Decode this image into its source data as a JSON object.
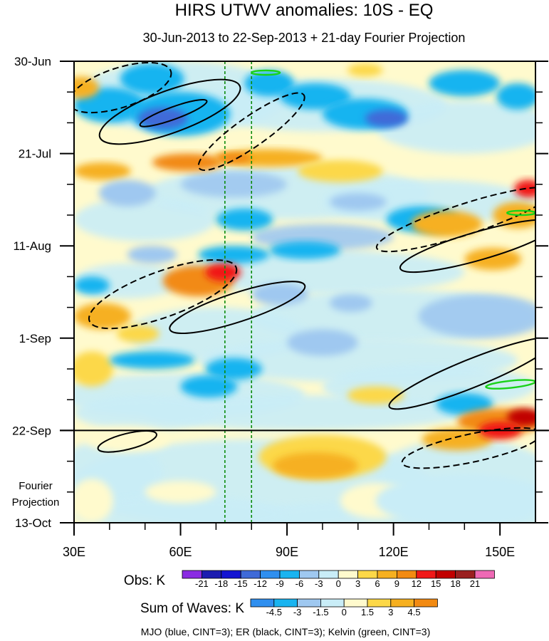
{
  "chart_data": {
    "type": "heatmap",
    "title": "HIRS UTWV anomalies: 10S - EQ",
    "subtitle": "30-Jun-2013 to 22-Sep-2013 + 21-day Fourier Projection",
    "x_axis": {
      "range": [
        30,
        160
      ],
      "ticks": [
        {
          "value": 30,
          "label": "30E"
        },
        {
          "value": 60,
          "label": "60E"
        },
        {
          "value": 90,
          "label": "90E"
        },
        {
          "value": 120,
          "label": "120E"
        },
        {
          "value": 150,
          "label": "150E"
        }
      ],
      "minor_ticks": [
        40,
        50,
        70,
        80,
        100,
        110,
        130,
        140
      ]
    },
    "y_axis": {
      "range_days": [
        0,
        105
      ],
      "ticks": [
        {
          "day": 0,
          "label": "30-Jun"
        },
        {
          "day": 21,
          "label": "21-Jul"
        },
        {
          "day": 42,
          "label": "11-Aug"
        },
        {
          "day": 63,
          "label": "1-Sep"
        },
        {
          "day": 84,
          "label": "22-Sep"
        },
        {
          "day": 105,
          "label": "13-Oct"
        }
      ],
      "minor_tick_days": [
        7,
        14,
        28,
        35,
        49,
        56,
        70,
        77,
        91,
        98
      ]
    },
    "observation_end_day": 84,
    "projection_label": [
      "Fourier",
      "Projection"
    ],
    "reference_lines_lon": [
      72.5,
      80
    ],
    "obs_legend": {
      "label": "Obs: K",
      "levels": [
        "-21",
        "-18",
        "-15",
        "-12",
        "-9",
        "-6",
        "-3",
        "0",
        "3",
        "6",
        "9",
        "12",
        "15",
        "18",
        "21"
      ],
      "colors": [
        "#8a2be2",
        "#1c1cb0",
        "#1414d2",
        "#3f6ad8",
        "#2f8fef",
        "#19b4f0",
        "#9fc8f0",
        "#c9edf7",
        "#fffacd",
        "#fcd848",
        "#f6b020",
        "#f28a12",
        "#f01818",
        "#c10000",
        "#9a2020",
        "#ee69b5"
      ]
    },
    "waves_legend": {
      "label": "Sum of Waves: K",
      "levels": [
        "-4.5",
        "-3",
        "-1.5",
        "0",
        "1.5",
        "3",
        "4.5"
      ],
      "colors": [
        "#2f8fef",
        "#19b4f0",
        "#9fc8f0",
        "#c9edf7",
        "#fffacd",
        "#fcd848",
        "#f6b020",
        "#f28a12"
      ]
    },
    "footnote": "MJO (blue, CINT=3); ER (black, CINT=3); Kelvin (green, CINT=3)",
    "anomaly_blobs": [
      {
        "lon": 52,
        "day": 4,
        "rlon": 9,
        "rday": 3.5,
        "level": 5
      },
      {
        "lon": 40,
        "day": 10,
        "rlon": 10,
        "rday": 4,
        "level": 5
      },
      {
        "lon": 60,
        "day": 12,
        "rlon": 14,
        "rday": 5,
        "level": 5
      },
      {
        "lon": 55,
        "day": 13,
        "rlon": 7,
        "rday": 2.5,
        "level": 3
      },
      {
        "lon": 85,
        "day": 5,
        "rlon": 7,
        "rday": 3,
        "level": 5
      },
      {
        "lon": 98,
        "day": 8,
        "rlon": 10,
        "rday": 3,
        "level": 5
      },
      {
        "lon": 112,
        "day": 12,
        "rlon": 12,
        "rday": 3.5,
        "level": 5
      },
      {
        "lon": 118,
        "day": 13,
        "rlon": 6,
        "rday": 2,
        "level": 3
      },
      {
        "lon": 140,
        "day": 5,
        "rlon": 10,
        "rday": 3,
        "level": 5
      },
      {
        "lon": 155,
        "day": 8,
        "rlon": 6,
        "rday": 3,
        "level": 5
      },
      {
        "lon": 32,
        "day": 6,
        "rlon": 5,
        "rday": 2.5,
        "level": 10
      },
      {
        "lon": 112,
        "day": 2,
        "rlon": 5,
        "rday": 1.5,
        "level": 9
      },
      {
        "lon": 62,
        "day": 23,
        "rlon": 10,
        "rday": 2,
        "level": 11
      },
      {
        "lon": 85,
        "day": 22,
        "rlon": 15,
        "rday": 2,
        "level": 10
      },
      {
        "lon": 75,
        "day": 22,
        "rlon": 5,
        "rday": 1.2,
        "level": 11
      },
      {
        "lon": 105,
        "day": 25,
        "rlon": 12,
        "rday": 2.5,
        "level": 9
      },
      {
        "lon": 38,
        "day": 25,
        "rlon": 8,
        "rday": 2,
        "level": 10
      },
      {
        "lon": 45,
        "day": 30,
        "rlon": 8,
        "rday": 3,
        "level": 6
      },
      {
        "lon": 110,
        "day": 32,
        "rlon": 8,
        "rday": 2,
        "level": 6
      },
      {
        "lon": 128,
        "day": 36,
        "rlon": 10,
        "rday": 3,
        "level": 5
      },
      {
        "lon": 78,
        "day": 36,
        "rlon": 8,
        "rday": 2.5,
        "level": 5
      },
      {
        "lon": 158,
        "day": 29,
        "rlon": 4,
        "rday": 2,
        "level": 12
      },
      {
        "lon": 135,
        "day": 37,
        "rlon": 10,
        "rday": 3,
        "level": 10
      },
      {
        "lon": 155,
        "day": 35,
        "rlon": 7,
        "rday": 3,
        "level": 10
      },
      {
        "lon": 75,
        "day": 44,
        "rlon": 10,
        "rday": 2,
        "level": 5
      },
      {
        "lon": 95,
        "day": 43,
        "rlon": 10,
        "rday": 2,
        "level": 5
      },
      {
        "lon": 52,
        "day": 44,
        "rlon": 7,
        "rday": 2,
        "level": 6
      },
      {
        "lon": 148,
        "day": 45,
        "rlon": 8,
        "rday": 2.5,
        "level": 10
      },
      {
        "lon": 65,
        "day": 50,
        "rlon": 10,
        "rday": 3.5,
        "level": 11
      },
      {
        "lon": 72,
        "day": 48,
        "rlon": 5,
        "rday": 2,
        "level": 12
      },
      {
        "lon": 35,
        "day": 51,
        "rlon": 5,
        "rday": 2,
        "level": 5
      },
      {
        "lon": 88,
        "day": 53,
        "rlon": 8,
        "rday": 2.5,
        "level": 6
      },
      {
        "lon": 108,
        "day": 55,
        "rlon": 6,
        "rday": 2,
        "level": 6
      },
      {
        "lon": 38,
        "day": 58,
        "rlon": 8,
        "rday": 3,
        "level": 10
      },
      {
        "lon": 48,
        "day": 62,
        "rlon": 6,
        "rday": 2,
        "level": 9
      },
      {
        "lon": 35,
        "day": 70,
        "rlon": 6,
        "rday": 4,
        "level": 9
      },
      {
        "lon": 52,
        "day": 68,
        "rlon": 12,
        "rday": 2,
        "level": 5
      },
      {
        "lon": 75,
        "day": 70,
        "rlon": 8,
        "rday": 2.5,
        "level": 5
      },
      {
        "lon": 68,
        "day": 74,
        "rlon": 8,
        "rday": 2.5,
        "level": 5
      },
      {
        "lon": 140,
        "day": 78,
        "rlon": 8,
        "rday": 2.5,
        "level": 5
      },
      {
        "lon": 100,
        "day": 64,
        "rlon": 10,
        "rday": 3,
        "level": 6
      },
      {
        "lon": 115,
        "day": 76,
        "rlon": 8,
        "rday": 2,
        "level": 9
      },
      {
        "lon": 150,
        "day": 82,
        "rlon": 12,
        "rday": 3,
        "level": 11
      },
      {
        "lon": 157,
        "day": 81,
        "rlon": 5,
        "rday": 2,
        "level": 13
      },
      {
        "lon": 138,
        "day": 86,
        "rlon": 10,
        "rday": 2.5,
        "level": 10
      },
      {
        "lon": 150,
        "day": 84,
        "rlon": 6,
        "rday": 2,
        "level": 12
      },
      {
        "lon": 45,
        "day": 86,
        "rlon": 12,
        "rday": 3,
        "level": 8
      },
      {
        "lon": 35,
        "day": 100,
        "rlon": 6,
        "rday": 5,
        "level": 8
      },
      {
        "lon": 115,
        "day": 100,
        "rlon": 10,
        "rday": 4,
        "level": 8
      },
      {
        "lon": 100,
        "day": 90,
        "rlon": 18,
        "rday": 5,
        "level": 9
      },
      {
        "lon": 98,
        "day": 92,
        "rlon": 12,
        "rday": 3,
        "level": 10
      },
      {
        "lon": 140,
        "day": 100,
        "rlon": 25,
        "rday": 6,
        "level": 7
      },
      {
        "lon": 60,
        "day": 98,
        "rlon": 10,
        "rday": 2.5,
        "level": 8
      }
    ],
    "wave_contours": [
      {
        "wave": "ER",
        "sign": "negative",
        "cx": 43,
        "cy": 6,
        "rx": 15,
        "ry": 4.5,
        "angle": -18
      },
      {
        "wave": "ER",
        "sign": "positive",
        "cx": 57,
        "cy": 11.5,
        "rx": 21,
        "ry": 4.8,
        "angle": -20
      },
      {
        "wave": "ER",
        "sign": "positive",
        "cx": 58,
        "cy": 11.8,
        "rx": 10,
        "ry": 1.4,
        "angle": -20
      },
      {
        "wave": "ER",
        "sign": "negative",
        "cx": 80,
        "cy": 16,
        "rx": 18,
        "ry": 3.4,
        "angle": -35
      },
      {
        "wave": "ER",
        "sign": "negative",
        "cx": 140,
        "cy": 36,
        "rx": 26,
        "ry": 3.5,
        "angle": -18
      },
      {
        "wave": "ER",
        "sign": "positive",
        "cx": 144,
        "cy": 42,
        "rx": 23,
        "ry": 3.2,
        "angle": -16
      },
      {
        "wave": "ER",
        "sign": "negative",
        "cx": 55,
        "cy": 53,
        "rx": 22,
        "ry": 5.2,
        "angle": -20
      },
      {
        "wave": "ER",
        "sign": "positive",
        "cx": 76,
        "cy": 56,
        "rx": 20,
        "ry": 3.3,
        "angle": -18
      },
      {
        "wave": "ER",
        "sign": "positive",
        "cx": 142,
        "cy": 71,
        "rx": 25,
        "ry": 3.2,
        "angle": -22
      },
      {
        "wave": "ER",
        "sign": "positive",
        "cx": 45,
        "cy": 86.5,
        "rx": 8.5,
        "ry": 1.8,
        "angle": -14
      },
      {
        "wave": "ER",
        "sign": "negative",
        "cx": 142,
        "cy": 88,
        "rx": 20,
        "ry": 3.2,
        "angle": -12
      },
      {
        "wave": "Kelvin",
        "sign": "positive",
        "cx": 84,
        "cy": 2.6,
        "rx": 4,
        "ry": 0.5,
        "angle": 0
      },
      {
        "wave": "Kelvin",
        "sign": "positive",
        "cx": 153,
        "cy": 73.5,
        "rx": 7,
        "ry": 0.8,
        "angle": -6
      },
      {
        "wave": "Kelvin",
        "sign": "positive",
        "cx": 156,
        "cy": 34.5,
        "rx": 4,
        "ry": 0.5,
        "angle": 0
      }
    ]
  }
}
